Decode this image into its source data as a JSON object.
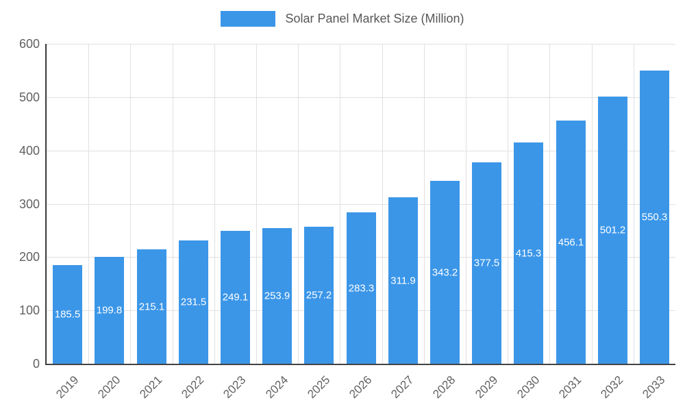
{
  "legend": {
    "label": "Solar Panel Market Size (Million)"
  },
  "colors": {
    "bar": "#3b96e8",
    "grid": "#e0e0e0",
    "axis_line": "#424242",
    "axis_text": "#616161",
    "legend_text": "#575757",
    "value_label_text": "#ffffff"
  },
  "chart_data": {
    "type": "bar",
    "title": "Solar Panel Market Size (Million)",
    "categories": [
      "2019",
      "2020",
      "2021",
      "2022",
      "2023",
      "2024",
      "2025",
      "2026",
      "2027",
      "2028",
      "2029",
      "2030",
      "2031",
      "2032",
      "2033"
    ],
    "values": [
      185.5,
      199.8,
      215.1,
      231.5,
      249.1,
      253.9,
      257.2,
      283.3,
      311.9,
      343.2,
      377.5,
      415.3,
      456.1,
      501.2,
      550.3
    ],
    "series": [
      {
        "name": "Solar Panel Market Size (Million)",
        "values": [
          185.5,
          199.8,
          215.1,
          231.5,
          249.1,
          253.9,
          257.2,
          283.3,
          311.9,
          343.2,
          377.5,
          415.3,
          456.1,
          501.2,
          550.3
        ]
      }
    ],
    "xlabel": "",
    "ylabel": "",
    "ylim": [
      0,
      600
    ],
    "yticks": [
      0,
      100,
      200,
      300,
      400,
      500,
      600
    ],
    "grid": true,
    "legend_position": "top",
    "value_labels": "inside-center",
    "value_label_decimals": 1
  }
}
